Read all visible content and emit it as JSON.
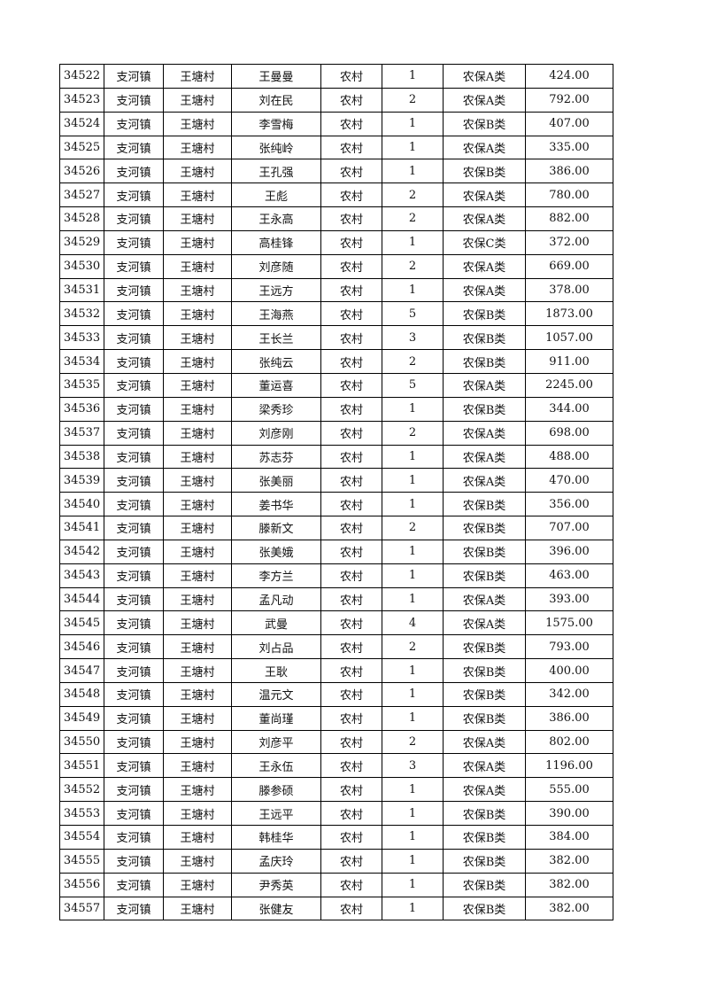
{
  "table": {
    "rows": [
      [
        "34522",
        "支河镇",
        "王塘村",
        "王曼曼",
        "农村",
        "1",
        "农保A类",
        "424.00"
      ],
      [
        "34523",
        "支河镇",
        "王塘村",
        "刘在民",
        "农村",
        "2",
        "农保A类",
        "792.00"
      ],
      [
        "34524",
        "支河镇",
        "王塘村",
        "李雪梅",
        "农村",
        "1",
        "农保B类",
        "407.00"
      ],
      [
        "34525",
        "支河镇",
        "王塘村",
        "张纯岭",
        "农村",
        "1",
        "农保A类",
        "335.00"
      ],
      [
        "34526",
        "支河镇",
        "王塘村",
        "王孔强",
        "农村",
        "1",
        "农保B类",
        "386.00"
      ],
      [
        "34527",
        "支河镇",
        "王塘村",
        "王彪",
        "农村",
        "2",
        "农保A类",
        "780.00"
      ],
      [
        "34528",
        "支河镇",
        "王塘村",
        "王永高",
        "农村",
        "2",
        "农保A类",
        "882.00"
      ],
      [
        "34529",
        "支河镇",
        "王塘村",
        "高桂锋",
        "农村",
        "1",
        "农保C类",
        "372.00"
      ],
      [
        "34530",
        "支河镇",
        "王塘村",
        "刘彦随",
        "农村",
        "2",
        "农保A类",
        "669.00"
      ],
      [
        "34531",
        "支河镇",
        "王塘村",
        "王远方",
        "农村",
        "1",
        "农保A类",
        "378.00"
      ],
      [
        "34532",
        "支河镇",
        "王塘村",
        "王海燕",
        "农村",
        "5",
        "农保B类",
        "1873.00"
      ],
      [
        "34533",
        "支河镇",
        "王塘村",
        "王长兰",
        "农村",
        "3",
        "农保B类",
        "1057.00"
      ],
      [
        "34534",
        "支河镇",
        "王塘村",
        "张纯云",
        "农村",
        "2",
        "农保B类",
        "911.00"
      ],
      [
        "34535",
        "支河镇",
        "王塘村",
        "董运喜",
        "农村",
        "5",
        "农保A类",
        "2245.00"
      ],
      [
        "34536",
        "支河镇",
        "王塘村",
        "梁秀珍",
        "农村",
        "1",
        "农保B类",
        "344.00"
      ],
      [
        "34537",
        "支河镇",
        "王塘村",
        "刘彦刚",
        "农村",
        "2",
        "农保A类",
        "698.00"
      ],
      [
        "34538",
        "支河镇",
        "王塘村",
        "苏志芬",
        "农村",
        "1",
        "农保A类",
        "488.00"
      ],
      [
        "34539",
        "支河镇",
        "王塘村",
        "张美丽",
        "农村",
        "1",
        "农保A类",
        "470.00"
      ],
      [
        "34540",
        "支河镇",
        "王塘村",
        "姜书华",
        "农村",
        "1",
        "农保B类",
        "356.00"
      ],
      [
        "34541",
        "支河镇",
        "王塘村",
        "滕新文",
        "农村",
        "2",
        "农保B类",
        "707.00"
      ],
      [
        "34542",
        "支河镇",
        "王塘村",
        "张美娥",
        "农村",
        "1",
        "农保B类",
        "396.00"
      ],
      [
        "34543",
        "支河镇",
        "王塘村",
        "李方兰",
        "农村",
        "1",
        "农保B类",
        "463.00"
      ],
      [
        "34544",
        "支河镇",
        "王塘村",
        "孟凡动",
        "农村",
        "1",
        "农保A类",
        "393.00"
      ],
      [
        "34545",
        "支河镇",
        "王塘村",
        "武曼",
        "农村",
        "4",
        "农保A类",
        "1575.00"
      ],
      [
        "34546",
        "支河镇",
        "王塘村",
        "刘占品",
        "农村",
        "2",
        "农保B类",
        "793.00"
      ],
      [
        "34547",
        "支河镇",
        "王塘村",
        "王耿",
        "农村",
        "1",
        "农保B类",
        "400.00"
      ],
      [
        "34548",
        "支河镇",
        "王塘村",
        "温元文",
        "农村",
        "1",
        "农保B类",
        "342.00"
      ],
      [
        "34549",
        "支河镇",
        "王塘村",
        "董尚瑾",
        "农村",
        "1",
        "农保B类",
        "386.00"
      ],
      [
        "34550",
        "支河镇",
        "王塘村",
        "刘彦平",
        "农村",
        "2",
        "农保A类",
        "802.00"
      ],
      [
        "34551",
        "支河镇",
        "王塘村",
        "王永伍",
        "农村",
        "3",
        "农保A类",
        "1196.00"
      ],
      [
        "34552",
        "支河镇",
        "王塘村",
        "滕参硕",
        "农村",
        "1",
        "农保A类",
        "555.00"
      ],
      [
        "34553",
        "支河镇",
        "王塘村",
        "王远平",
        "农村",
        "1",
        "农保B类",
        "390.00"
      ],
      [
        "34554",
        "支河镇",
        "王塘村",
        "韩桂华",
        "农村",
        "1",
        "农保B类",
        "384.00"
      ],
      [
        "34555",
        "支河镇",
        "王塘村",
        "孟庆玲",
        "农村",
        "1",
        "农保B类",
        "382.00"
      ],
      [
        "34556",
        "支河镇",
        "王塘村",
        "尹秀英",
        "农村",
        "1",
        "农保B类",
        "382.00"
      ],
      [
        "34557",
        "支河镇",
        "王塘村",
        "张健友",
        "农村",
        "1",
        "农保B类",
        "382.00"
      ]
    ]
  }
}
